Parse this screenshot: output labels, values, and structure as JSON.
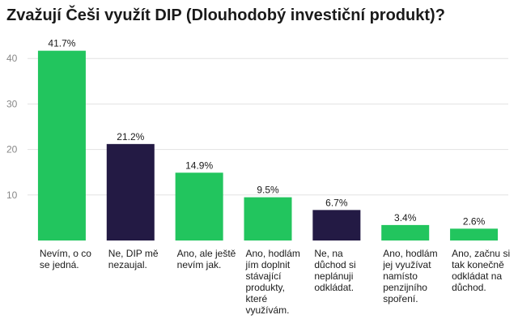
{
  "chart_data": {
    "type": "bar",
    "title": "Zvažují Češi využít DIP (Dlouhodobý investiční produkt)?",
    "xlabel": "",
    "ylabel": "",
    "ylim": [
      0,
      45
    ],
    "yticks": [
      10,
      20,
      30,
      40
    ],
    "grid": true,
    "legend": "none",
    "categories": [
      [
        "Nevím, o co",
        "se jedná."
      ],
      [
        "Ne, DIP mě",
        "nezaujal."
      ],
      [
        "Ano, ale ještě",
        "nevím jak."
      ],
      [
        "Ano, hodlám",
        "jím doplnit",
        "stávající",
        "produkty,",
        "které",
        "využívám."
      ],
      [
        "Ne, na",
        "důchod si",
        "neplánuji",
        "odkládat."
      ],
      [
        "Ano, hodlám",
        "jej využívat",
        "namísto",
        "penzijního",
        "spoření."
      ],
      [
        "Ano, začnu si",
        "tak konečně",
        "odkládat na",
        "důchod."
      ]
    ],
    "values": [
      41.7,
      21.2,
      14.9,
      9.5,
      6.7,
      3.4,
      2.6
    ],
    "value_labels": [
      "41.7%",
      "21.2%",
      "14.9%",
      "9.5%",
      "6.7%",
      "3.4%",
      "2.6%"
    ],
    "bar_colors": [
      "#22c55e",
      "#231a44",
      "#22c55e",
      "#22c55e",
      "#231a44",
      "#22c55e",
      "#22c55e"
    ]
  }
}
